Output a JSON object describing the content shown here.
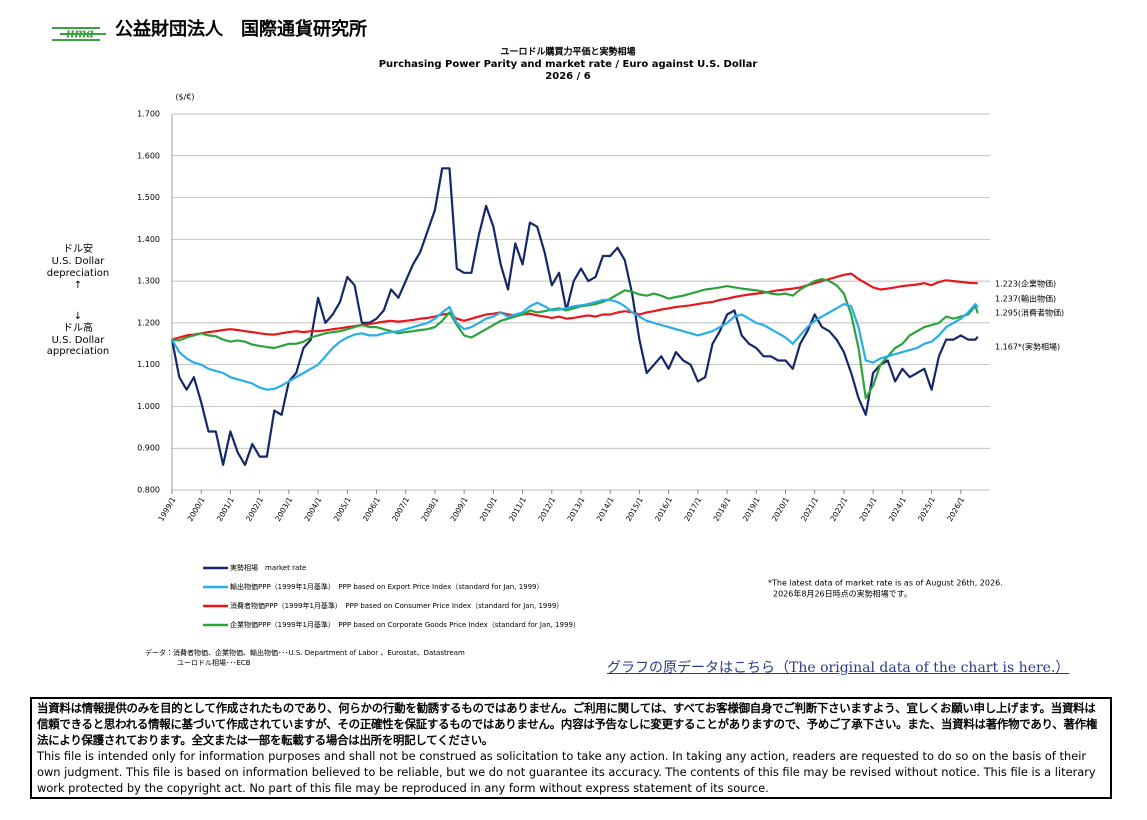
{
  "header": {
    "logo": "iima",
    "organization": "公益財団法人　国際通貨研究所"
  },
  "chart_data": {
    "type": "line",
    "title": "ユーロドル購買力平価と実勢相場",
    "subtitle": "Purchasing Power Parity and market rate / Euro against  U.S. Dollar",
    "date_label": "2026 / 6",
    "y_axis_label": "($/€)",
    "side_labels": {
      "up": [
        "ドル安",
        "U.S. Dollar",
        "depreciation",
        "↑"
      ],
      "down": [
        "↓",
        "ドル高",
        "U.S. Dollar",
        "appreciation"
      ]
    },
    "grid": true,
    "xlim": [
      1999,
      2027
    ],
    "ylim": [
      0.8,
      1.7
    ],
    "yticks": [
      {
        "value": 0.8,
        "label": "0.800"
      },
      {
        "value": 0.9,
        "label": "0.900"
      },
      {
        "value": 1.0,
        "label": "1.000"
      },
      {
        "value": 1.1,
        "label": "1.100"
      },
      {
        "value": 1.2,
        "label": "1.200"
      },
      {
        "value": 1.3,
        "label": "1.300"
      },
      {
        "value": 1.4,
        "label": "1.400"
      },
      {
        "value": 1.5,
        "label": "1.500"
      },
      {
        "value": 1.6,
        "label": "1.600"
      },
      {
        "value": 1.7,
        "label": "1.700"
      }
    ],
    "xticks": [
      {
        "value": 1999,
        "label": "1999/1"
      },
      {
        "value": 2000,
        "label": "2000/1"
      },
      {
        "value": 2001,
        "label": "2001/1"
      },
      {
        "value": 2002,
        "label": "2002/1"
      },
      {
        "value": 2003,
        "label": "2003/1"
      },
      {
        "value": 2004,
        "label": "2004/1"
      },
      {
        "value": 2005,
        "label": "2005/1"
      },
      {
        "value": 2006,
        "label": "2006/1"
      },
      {
        "value": 2007,
        "label": "2007/1"
      },
      {
        "value": 2008,
        "label": "2008/1"
      },
      {
        "value": 2009,
        "label": "2009/1"
      },
      {
        "value": 2010,
        "label": "2010/1"
      },
      {
        "value": 2011,
        "label": "2011/1"
      },
      {
        "value": 2012,
        "label": "2012/1"
      },
      {
        "value": 2013,
        "label": "2013/1"
      },
      {
        "value": 2014,
        "label": "2014/1"
      },
      {
        "value": 2015,
        "label": "2015/1"
      },
      {
        "value": 2016,
        "label": "2016/1"
      },
      {
        "value": 2017,
        "label": "2017/1"
      },
      {
        "value": 2018,
        "label": "2018/1"
      },
      {
        "value": 2019,
        "label": "2019/1"
      },
      {
        "value": 2020,
        "label": "2020/1"
      },
      {
        "value": 2021,
        "label": "2021/1"
      },
      {
        "value": 2022,
        "label": "2022/1"
      },
      {
        "value": 2023,
        "label": "2023/1"
      },
      {
        "value": 2024,
        "label": "2024/1"
      },
      {
        "value": 2025,
        "label": "2025/1"
      },
      {
        "value": 2026,
        "label": "2026/1"
      }
    ],
    "x": [
      1999,
      1999.25,
      1999.5,
      1999.75,
      2000,
      2000.25,
      2000.5,
      2000.75,
      2001,
      2001.25,
      2001.5,
      2001.75,
      2002,
      2002.25,
      2002.5,
      2002.75,
      2003,
      2003.25,
      2003.5,
      2003.75,
      2004,
      2004.25,
      2004.5,
      2004.75,
      2005,
      2005.25,
      2005.5,
      2005.75,
      2006,
      2006.25,
      2006.5,
      2006.75,
      2007,
      2007.25,
      2007.5,
      2007.75,
      2008,
      2008.25,
      2008.5,
      2008.75,
      2009,
      2009.25,
      2009.5,
      2009.75,
      2010,
      2010.25,
      2010.5,
      2010.75,
      2011,
      2011.25,
      2011.5,
      2011.75,
      2012,
      2012.25,
      2012.5,
      2012.75,
      2013,
      2013.25,
      2013.5,
      2013.75,
      2014,
      2014.25,
      2014.5,
      2014.75,
      2015,
      2015.25,
      2015.5,
      2015.75,
      2016,
      2016.25,
      2016.5,
      2016.75,
      2017,
      2017.25,
      2017.5,
      2017.75,
      2018,
      2018.25,
      2018.5,
      2018.75,
      2019,
      2019.25,
      2019.5,
      2019.75,
      2020,
      2020.25,
      2020.5,
      2020.75,
      2021,
      2021.25,
      2021.5,
      2021.75,
      2022,
      2022.25,
      2022.5,
      2022.75,
      2023,
      2023.25,
      2023.5,
      2023.75,
      2024,
      2024.25,
      2024.5,
      2024.75,
      2025,
      2025.25,
      2025.5,
      2025.75,
      2026,
      2026.25,
      2026.5,
      2026.583
    ],
    "series": [
      {
        "name": "実勢相場　market rate",
        "color": "#16266a",
        "end_label": "1.167*(実勢相場)",
        "values": [
          1.16,
          1.07,
          1.04,
          1.07,
          1.01,
          0.94,
          0.94,
          0.86,
          0.94,
          0.89,
          0.86,
          0.91,
          0.88,
          0.88,
          0.99,
          0.98,
          1.06,
          1.08,
          1.14,
          1.16,
          1.26,
          1.2,
          1.22,
          1.25,
          1.31,
          1.29,
          1.2,
          1.2,
          1.21,
          1.23,
          1.28,
          1.26,
          1.3,
          1.34,
          1.37,
          1.42,
          1.47,
          1.57,
          1.57,
          1.33,
          1.32,
          1.32,
          1.41,
          1.48,
          1.43,
          1.34,
          1.28,
          1.39,
          1.34,
          1.44,
          1.43,
          1.37,
          1.29,
          1.32,
          1.23,
          1.3,
          1.33,
          1.3,
          1.31,
          1.36,
          1.36,
          1.38,
          1.35,
          1.27,
          1.16,
          1.08,
          1.1,
          1.12,
          1.09,
          1.13,
          1.11,
          1.1,
          1.06,
          1.07,
          1.15,
          1.18,
          1.22,
          1.23,
          1.17,
          1.15,
          1.14,
          1.12,
          1.12,
          1.11,
          1.11,
          1.09,
          1.15,
          1.18,
          1.22,
          1.19,
          1.18,
          1.16,
          1.13,
          1.08,
          1.02,
          0.98,
          1.08,
          1.1,
          1.11,
          1.06,
          1.09,
          1.07,
          1.08,
          1.09,
          1.04,
          1.12,
          1.16,
          1.16,
          1.17,
          1.16,
          1.16,
          1.167
        ]
      },
      {
        "name": "消費者物価PPP（1999年1月基準）　PPP based on Consumer Price Index（standard for Jan, 1999）",
        "color": "#e8161b",
        "end_label": "1.295(消費者物価)",
        "values": [
          1.16,
          1.165,
          1.17,
          1.172,
          1.175,
          1.178,
          1.18,
          1.183,
          1.185,
          1.183,
          1.18,
          1.178,
          1.175,
          1.173,
          1.172,
          1.175,
          1.178,
          1.18,
          1.178,
          1.18,
          1.18,
          1.182,
          1.185,
          1.187,
          1.19,
          1.192,
          1.195,
          1.197,
          1.2,
          1.203,
          1.205,
          1.203,
          1.205,
          1.207,
          1.21,
          1.212,
          1.215,
          1.22,
          1.222,
          1.21,
          1.205,
          1.21,
          1.215,
          1.22,
          1.222,
          1.225,
          1.22,
          1.218,
          1.22,
          1.222,
          1.218,
          1.215,
          1.212,
          1.215,
          1.21,
          1.212,
          1.215,
          1.218,
          1.215,
          1.22,
          1.22,
          1.225,
          1.228,
          1.225,
          1.22,
          1.225,
          1.228,
          1.232,
          1.235,
          1.238,
          1.24,
          1.242,
          1.245,
          1.248,
          1.25,
          1.255,
          1.258,
          1.262,
          1.265,
          1.268,
          1.27,
          1.272,
          1.275,
          1.278,
          1.28,
          1.282,
          1.285,
          1.29,
          1.295,
          1.3,
          1.305,
          1.31,
          1.315,
          1.318,
          1.305,
          1.295,
          1.285,
          1.28,
          1.282,
          1.285,
          1.288,
          1.29,
          1.292,
          1.295,
          1.29,
          1.298,
          1.302,
          1.3,
          1.298,
          1.296,
          1.295,
          1.295
        ]
      },
      {
        "name": "企業物価PPP（1999年1月基準）　PPP based on Corporate Goods Price Index（standard for Jan, 1999）",
        "color": "#2aa43a",
        "end_label": "1.223(企業物価)",
        "values": [
          1.16,
          1.158,
          1.165,
          1.17,
          1.175,
          1.17,
          1.168,
          1.16,
          1.155,
          1.158,
          1.155,
          1.148,
          1.145,
          1.142,
          1.14,
          1.145,
          1.15,
          1.15,
          1.155,
          1.165,
          1.17,
          1.175,
          1.178,
          1.18,
          1.185,
          1.19,
          1.195,
          1.19,
          1.19,
          1.185,
          1.18,
          1.175,
          1.178,
          1.18,
          1.183,
          1.185,
          1.19,
          1.205,
          1.225,
          1.195,
          1.17,
          1.165,
          1.175,
          1.185,
          1.195,
          1.205,
          1.21,
          1.215,
          1.22,
          1.23,
          1.225,
          1.228,
          1.232,
          1.235,
          1.23,
          1.235,
          1.24,
          1.242,
          1.245,
          1.25,
          1.258,
          1.268,
          1.278,
          1.275,
          1.268,
          1.265,
          1.27,
          1.265,
          1.258,
          1.262,
          1.265,
          1.27,
          1.275,
          1.28,
          1.282,
          1.285,
          1.288,
          1.285,
          1.282,
          1.28,
          1.278,
          1.275,
          1.27,
          1.268,
          1.27,
          1.265,
          1.28,
          1.29,
          1.3,
          1.305,
          1.3,
          1.29,
          1.27,
          1.22,
          1.14,
          1.02,
          1.05,
          1.1,
          1.12,
          1.14,
          1.15,
          1.17,
          1.18,
          1.19,
          1.195,
          1.2,
          1.215,
          1.21,
          1.215,
          1.22,
          1.24,
          1.223
        ]
      },
      {
        "name": "輸出物価PPP（1999年1月基準）　PPP based on Export Price Index（standard for Jan, 1999）",
        "color": "#27aee8",
        "end_label": "1.237(輸出物価)",
        "values": [
          1.16,
          1.13,
          1.115,
          1.105,
          1.1,
          1.09,
          1.085,
          1.08,
          1.07,
          1.065,
          1.06,
          1.055,
          1.045,
          1.04,
          1.042,
          1.05,
          1.06,
          1.07,
          1.08,
          1.09,
          1.1,
          1.12,
          1.14,
          1.155,
          1.165,
          1.172,
          1.175,
          1.17,
          1.17,
          1.175,
          1.178,
          1.18,
          1.185,
          1.19,
          1.195,
          1.2,
          1.21,
          1.225,
          1.238,
          1.2,
          1.185,
          1.19,
          1.2,
          1.21,
          1.215,
          1.225,
          1.215,
          1.22,
          1.225,
          1.24,
          1.248,
          1.24,
          1.23,
          1.232,
          1.235,
          1.24,
          1.242,
          1.245,
          1.25,
          1.255,
          1.255,
          1.25,
          1.24,
          1.225,
          1.215,
          1.205,
          1.2,
          1.195,
          1.19,
          1.185,
          1.18,
          1.175,
          1.17,
          1.175,
          1.18,
          1.19,
          1.2,
          1.215,
          1.22,
          1.21,
          1.2,
          1.195,
          1.185,
          1.175,
          1.165,
          1.15,
          1.17,
          1.19,
          1.205,
          1.215,
          1.225,
          1.235,
          1.245,
          1.24,
          1.19,
          1.11,
          1.105,
          1.115,
          1.12,
          1.125,
          1.13,
          1.135,
          1.14,
          1.15,
          1.155,
          1.17,
          1.19,
          1.2,
          1.21,
          1.225,
          1.245,
          1.237
        ]
      }
    ],
    "note": [
      "*The latest data of market rate is as of August 26th, 2026.",
      "2026年8月26日時点の実勢相場です。"
    ],
    "source": [
      "データ：消費者物価、企業物価、輸出物価･･･U.S. Department of Labor 、Eurostat、Datastream",
      "ユーロドル相場･･･ECB"
    ]
  },
  "link": "グラフの原データはこちら（The original data of the chart is here.）",
  "disclaimer": {
    "ja": "当資料は情報提供のみを目的として作成されたものであり、何らかの行動を勧誘するものではありません。ご利用に関しては、すべてお客様御自身でご判断下さいますよう、宜しくお願い申し上げます。当資料は信頼できると思われる情報に基づいて作成されていますが、その正確性を保証するものではありません。内容は予告なしに変更することがありますので、予めご了承下さい。また、当資料は著作物であり、著作権法により保護されております。全文または一部を転載する場合は出所を明記してください。",
    "en": "This file is intended only for information purposes and shall not be construed as solicitation to take any action. In taking any action, readers are requested to do so on the basis of their own judgment. This file is based on information believed to be reliable, but we do not guarantee its accuracy. The contents of this file may be revised without notice. This file is a literary work protected by the copyright act. No part of this file may be reproduced in any form without express statement of its source."
  }
}
